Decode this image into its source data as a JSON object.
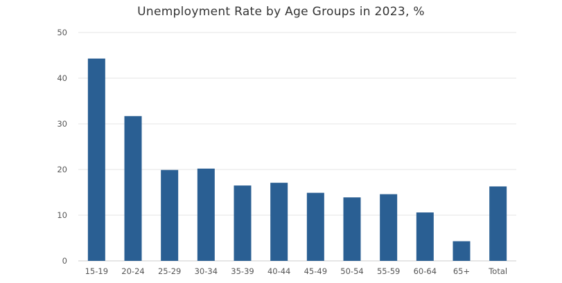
{
  "chart_data": {
    "type": "bar",
    "title": "Unemployment Rate by Age Groups in 2023, %",
    "xlabel": "",
    "ylabel": "",
    "categories": [
      "15-19",
      "20-24",
      "25-29",
      "30-34",
      "35-39",
      "40-44",
      "45-49",
      "50-54",
      "55-59",
      "60-64",
      "65+",
      "Total"
    ],
    "values": [
      44.3,
      31.7,
      19.9,
      20.2,
      16.5,
      17.1,
      14.9,
      13.9,
      14.6,
      10.6,
      4.3,
      16.3
    ],
    "ylim": [
      0,
      50
    ],
    "yticks": [
      0,
      10,
      20,
      30,
      40,
      50
    ],
    "grid": true,
    "legend": "none",
    "colors": {
      "bar": "#2a5f93",
      "grid": "#e6e6e6",
      "text": "#555555"
    }
  }
}
